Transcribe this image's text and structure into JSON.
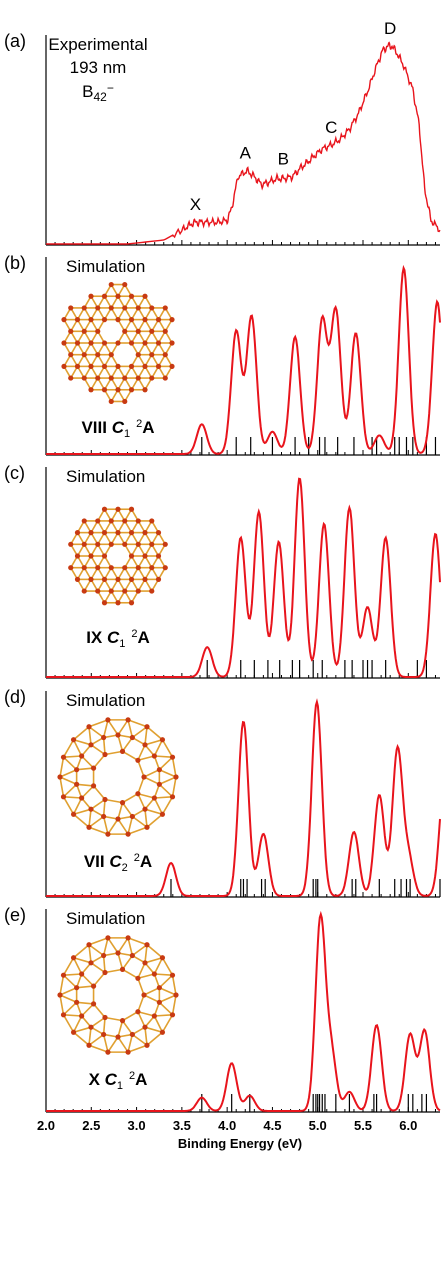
{
  "chart_data": {
    "type": "line",
    "x_axis": {
      "label": "Binding Energy (eV)",
      "range": [
        2.0,
        6.35
      ],
      "tick_labels": [
        "2.0",
        "2.5",
        "3.0",
        "3.5",
        "4.0",
        "4.5",
        "5.0",
        "5.5",
        "6.0"
      ],
      "tick_values": [
        2.0,
        2.5,
        3.0,
        3.5,
        4.0,
        4.5,
        5.0,
        5.5,
        6.0
      ]
    },
    "panels": [
      {
        "panel_label": "(a)",
        "title_lines": [
          "Experimental",
          "193 nm",
          "B42−"
        ],
        "series": [
          {
            "x": [
              2.0,
              2.9,
              3.3,
              3.5,
              3.6,
              3.65,
              3.7,
              3.8,
              3.9,
              4.0,
              4.05,
              4.12,
              4.22,
              4.3,
              4.38,
              4.45,
              4.55,
              4.62,
              4.72,
              4.8,
              4.88,
              4.95,
              5.05,
              5.15,
              5.25,
              5.35,
              5.45,
              5.55,
              5.65,
              5.72,
              5.78,
              5.82,
              5.88,
              5.95,
              6.05,
              6.12,
              6.18,
              6.25,
              6.35
            ],
            "y": [
              0,
              0,
              0.02,
              0.07,
              0.1,
              0.11,
              0.11,
              0.11,
              0.11,
              0.12,
              0.18,
              0.34,
              0.37,
              0.34,
              0.3,
              0.31,
              0.33,
              0.33,
              0.34,
              0.38,
              0.41,
              0.44,
              0.48,
              0.5,
              0.53,
              0.58,
              0.66,
              0.77,
              0.9,
              0.98,
              1.0,
              1.0,
              0.96,
              0.9,
              0.78,
              0.6,
              0.28,
              0.12,
              0.07
            ]
          }
        ],
        "peak_labels": [
          {
            "label": "X",
            "x": 3.65,
            "y": 0.11
          },
          {
            "label": "A",
            "x": 4.2,
            "y": 0.37
          },
          {
            "label": "B",
            "x": 4.62,
            "y": 0.34
          },
          {
            "label": "C",
            "x": 5.15,
            "y": 0.5
          },
          {
            "label": "D",
            "x": 5.8,
            "y": 1.0
          }
        ]
      },
      {
        "panel_label": "(b)",
        "title": "Simulation",
        "isomer": {
          "numeral": "VIII",
          "group": "C",
          "sub": "1",
          "state": "2A",
          "structure": "hexagonal-b42-with-two-holes"
        },
        "stick_energies": [
          3.72,
          4.1,
          4.26,
          4.5,
          4.75,
          4.9,
          5.02,
          5.08,
          5.22,
          5.4,
          5.6,
          5.65,
          5.85,
          5.9,
          5.98,
          6.05,
          6.2,
          6.3
        ],
        "peaks": [
          {
            "x": 3.72,
            "h": 0.16
          },
          {
            "x": 4.1,
            "h": 0.66
          },
          {
            "x": 4.27,
            "h": 0.74
          },
          {
            "x": 4.5,
            "h": 0.12
          },
          {
            "x": 4.75,
            "h": 0.63
          },
          {
            "x": 5.05,
            "h": 0.72
          },
          {
            "x": 5.2,
            "h": 0.77
          },
          {
            "x": 5.42,
            "h": 0.65
          },
          {
            "x": 5.68,
            "h": 0.1
          },
          {
            "x": 5.95,
            "h": 1.0
          },
          {
            "x": 6.32,
            "h": 0.82
          }
        ]
      },
      {
        "panel_label": "(c)",
        "title": "Simulation",
        "isomer": {
          "numeral": "IX",
          "group": "C",
          "sub": "1",
          "state": "2A",
          "structure": "b42-with-one-hexagonal-hole"
        },
        "stick_energies": [
          3.78,
          4.15,
          4.3,
          4.45,
          4.58,
          4.72,
          4.8,
          4.95,
          5.05,
          5.3,
          5.38,
          5.5,
          5.55,
          5.6,
          5.75,
          6.1,
          6.2
        ],
        "peaks": [
          {
            "x": 3.78,
            "h": 0.15
          },
          {
            "x": 4.15,
            "h": 0.7
          },
          {
            "x": 4.35,
            "h": 0.83
          },
          {
            "x": 4.57,
            "h": 0.68
          },
          {
            "x": 4.8,
            "h": 1.0
          },
          {
            "x": 5.07,
            "h": 0.77
          },
          {
            "x": 5.35,
            "h": 0.85
          },
          {
            "x": 5.55,
            "h": 0.35
          },
          {
            "x": 5.75,
            "h": 0.7
          },
          {
            "x": 6.3,
            "h": 0.72
          }
        ]
      },
      {
        "panel_label": "(d)",
        "title": "Simulation",
        "isomer": {
          "numeral": "VII",
          "group": "C",
          "sub": "2",
          "state": "2A",
          "structure": "b42-ring-with-central-hole"
        },
        "stick_energies": [
          3.38,
          4.15,
          4.18,
          4.22,
          4.38,
          4.42,
          4.95,
          4.98,
          5.0,
          5.38,
          5.42,
          5.68,
          5.85,
          5.92,
          5.98,
          6.02,
          6.35
        ],
        "peaks": [
          {
            "x": 3.38,
            "h": 0.17
          },
          {
            "x": 4.18,
            "h": 0.9
          },
          {
            "x": 4.4,
            "h": 0.32
          },
          {
            "x": 4.99,
            "h": 1.0
          },
          {
            "x": 5.4,
            "h": 0.33
          },
          {
            "x": 5.68,
            "h": 0.52
          },
          {
            "x": 5.88,
            "h": 0.75
          },
          {
            "x": 6.0,
            "h": 0.2
          },
          {
            "x": 6.4,
            "h": 0.6
          }
        ]
      },
      {
        "panel_label": "(e)",
        "title": "Simulation",
        "isomer": {
          "numeral": "X",
          "group": "C",
          "sub": "1",
          "state": "2A",
          "structure": "b42-ring-with-central-hole"
        },
        "stick_energies": [
          3.72,
          4.05,
          4.25,
          4.95,
          4.98,
          5.0,
          5.02,
          5.05,
          5.08,
          5.2,
          5.35,
          5.62,
          5.65,
          6.0,
          6.05,
          6.15,
          6.2
        ],
        "peaks": [
          {
            "x": 3.72,
            "h": 0.07
          },
          {
            "x": 4.05,
            "h": 0.25
          },
          {
            "x": 4.25,
            "h": 0.08
          },
          {
            "x": 5.03,
            "h": 1.0
          },
          {
            "x": 5.15,
            "h": 0.3
          },
          {
            "x": 5.35,
            "h": 0.1
          },
          {
            "x": 5.65,
            "h": 0.45
          },
          {
            "x": 6.02,
            "h": 0.4
          },
          {
            "x": 6.18,
            "h": 0.42
          }
        ]
      }
    ],
    "colors": {
      "curve": "#e8141c",
      "axis": "#000000",
      "stick": "#000000",
      "bond": "#e0a030",
      "atom": "#c83a12"
    }
  }
}
